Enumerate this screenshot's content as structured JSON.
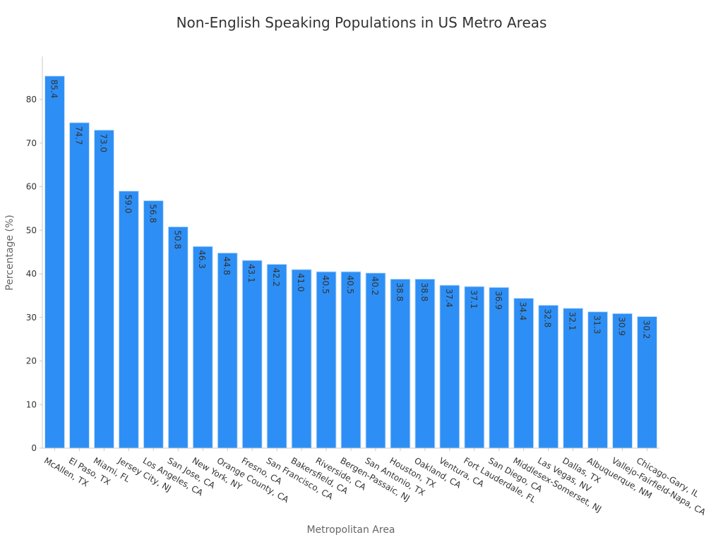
{
  "chart_data": {
    "type": "bar",
    "title": "Non-English Speaking Populations in US Metro Areas",
    "xlabel": "Metropolitan Area",
    "ylabel": "Percentage (%)",
    "ylim": [
      0,
      90
    ],
    "yticks": [
      0,
      10,
      20,
      30,
      40,
      50,
      60,
      70,
      80
    ],
    "grid": false,
    "categories": [
      "McAllen, TX",
      "El Paso, TX",
      "Miami, FL",
      "Jersey City, NJ",
      "Los Angeles, CA",
      "San Jose, CA",
      "New York, NY",
      "Orange County, CA",
      "Fresno, CA",
      "San Francisco, CA",
      "Bakersfield, CA",
      "Riverside, CA",
      "Bergen-Passaic, NJ",
      "San Antonio, TX",
      "Houston, TX",
      "Oakland, CA",
      "Ventura, CA",
      "Fort Lauderdale, FL",
      "San Diego, CA",
      "Middlesex-Somerset, NJ",
      "Las Vegas, NV",
      "Dallas, TX",
      "Albuquerque, NM",
      "Vallejo-Fairfield-Napa, CA",
      "Chicago-Gary, IL"
    ],
    "values": [
      85.4,
      74.7,
      73.0,
      59.0,
      56.8,
      50.8,
      46.3,
      44.8,
      43.1,
      42.2,
      41.0,
      40.5,
      40.5,
      40.2,
      38.8,
      38.8,
      37.4,
      37.1,
      36.9,
      34.4,
      32.8,
      32.1,
      31.3,
      30.9,
      30.2
    ],
    "data_labels": [
      "85.4",
      "74.7",
      "73.0",
      "59.0",
      "56.8",
      "50.8",
      "46.3",
      "44.8",
      "43.1",
      "42.2",
      "41.0",
      "40.5",
      "40.5",
      "40.2",
      "38.8",
      "38.8",
      "37.4",
      "37.1",
      "36.9",
      "34.4",
      "32.8",
      "32.1",
      "31.3",
      "30.9",
      "30.2"
    ],
    "colors": {
      "bar": "#2d8ff5",
      "bar_edge": "#cfe3fb",
      "axis": "#c9c9c9",
      "title": "#333333",
      "tick_label": "#333333",
      "axis_label": "#666666",
      "data_label": "#333333"
    }
  }
}
